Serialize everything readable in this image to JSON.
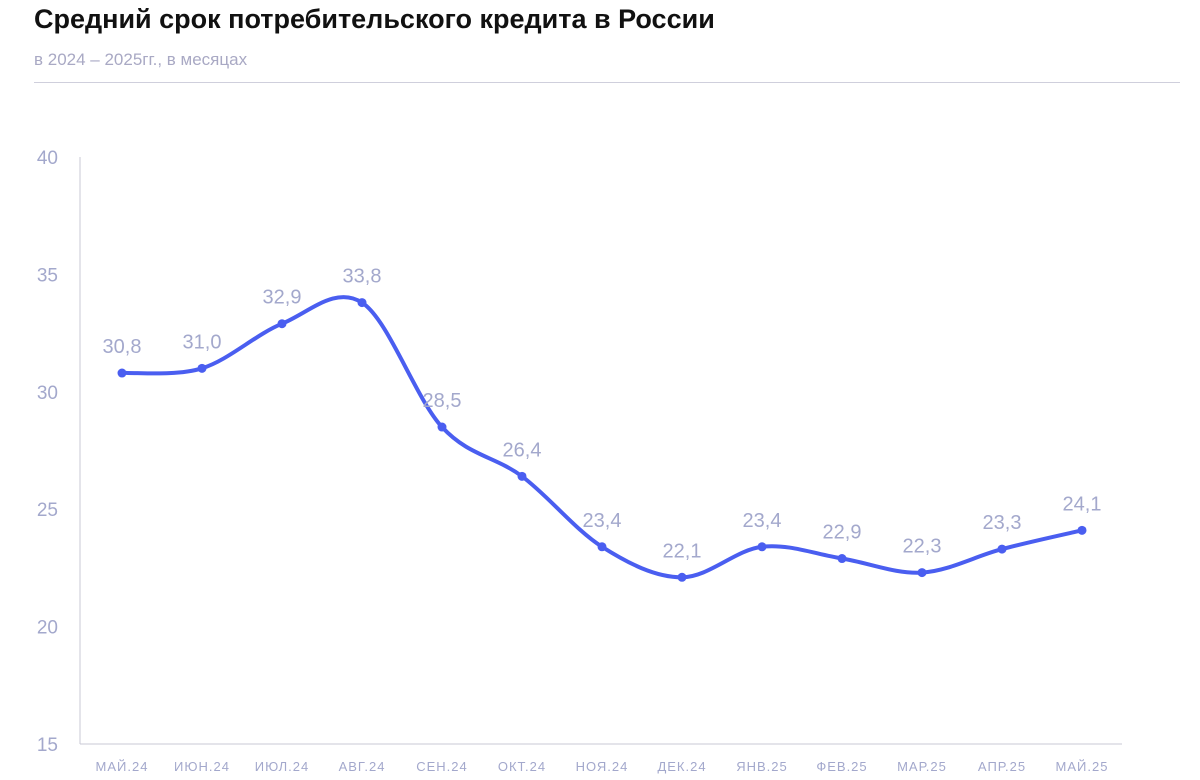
{
  "header": {
    "title": "Средний срок потребительского кредита в России",
    "subtitle": "в 2024 – 2025гг., в месяцах"
  },
  "colors": {
    "line": "#4a5ef0",
    "label": "#a3a8cc",
    "tick": "#a3a8cc",
    "axis": "#c9c9d6"
  },
  "chart_data": {
    "type": "line",
    "categories": [
      "МАЙ.24",
      "ИЮН.24",
      "ИЮЛ.24",
      "АВГ.24",
      "СЕН.24",
      "ОКТ.24",
      "НОЯ.24",
      "ДЕК.24",
      "ЯНВ.25",
      "ФЕВ.25",
      "МАР.25",
      "АПР.25",
      "МАЙ.25"
    ],
    "series": [
      {
        "values": [
          30.8,
          31.0,
          32.9,
          33.8,
          28.5,
          26.4,
          23.4,
          22.1,
          23.4,
          22.9,
          22.3,
          23.3,
          24.1
        ],
        "labels": [
          "30,8",
          "31,0",
          "32,9",
          "33,8",
          "28,5",
          "26,4",
          "23,4",
          "22,1",
          "23,4",
          "22,9",
          "22,3",
          "23,3",
          "24,1"
        ]
      }
    ],
    "yticks": [
      "15",
      "20",
      "25",
      "30",
      "35",
      "40"
    ],
    "ylim": [
      15,
      40
    ],
    "grid": false,
    "legend": "none",
    "xlabel": "",
    "ylabel": ""
  }
}
